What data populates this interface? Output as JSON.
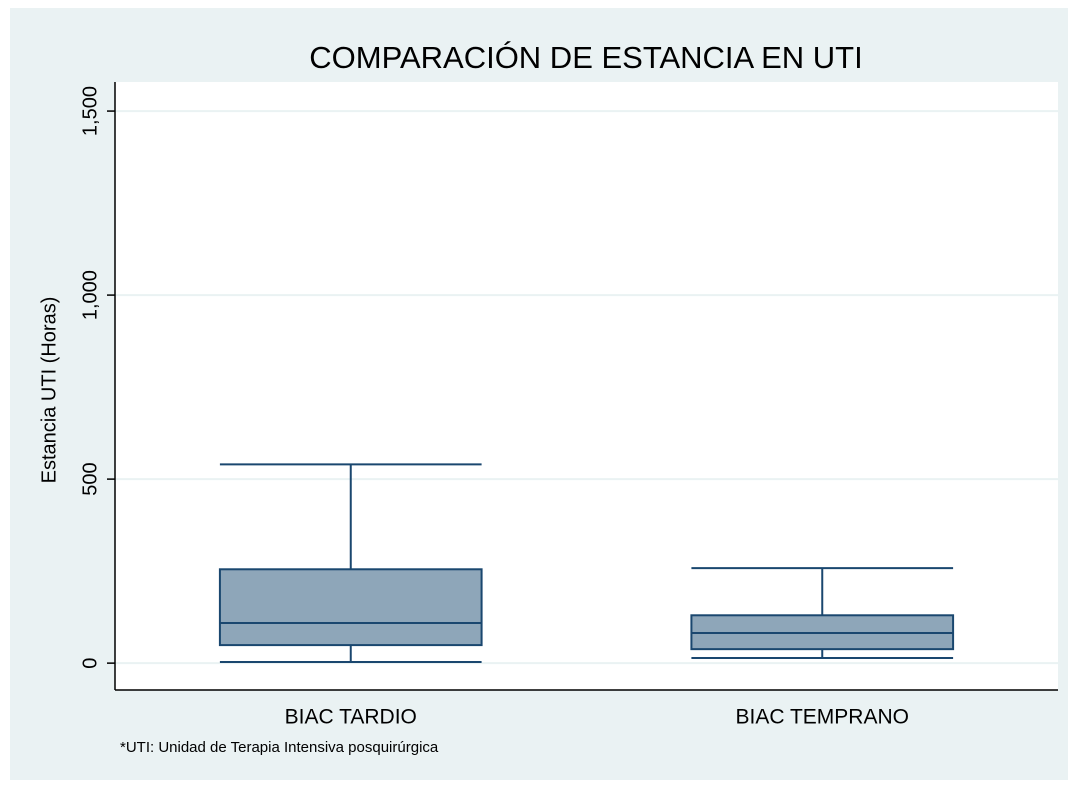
{
  "chart_data": {
    "type": "box",
    "title": "COMPARACIÓN DE ESTANCIA EN UTI",
    "y_label": "Estancia UTI (Horas)",
    "note": "*UTI: Unidad de Terapia Intensiva posquirúrgica",
    "categories": [
      "BIAC TARDIO",
      "BIAC TEMPRANO"
    ],
    "boxes": [
      {
        "min": 3,
        "q1": 49,
        "median": 109,
        "q3": 255,
        "max": 540
      },
      {
        "min": 14,
        "q1": 38,
        "median": 82,
        "q3": 130,
        "max": 258
      }
    ],
    "color": "#8ea6b9",
    "edge_color": "#1a476f",
    "ylim": [
      -73,
      1579
    ],
    "yticks": [
      0,
      500,
      {
        "value": 1000,
        "label": "1,000"
      },
      {
        "value": 1500,
        "label": "1,500"
      }
    ],
    "grid": true
  }
}
